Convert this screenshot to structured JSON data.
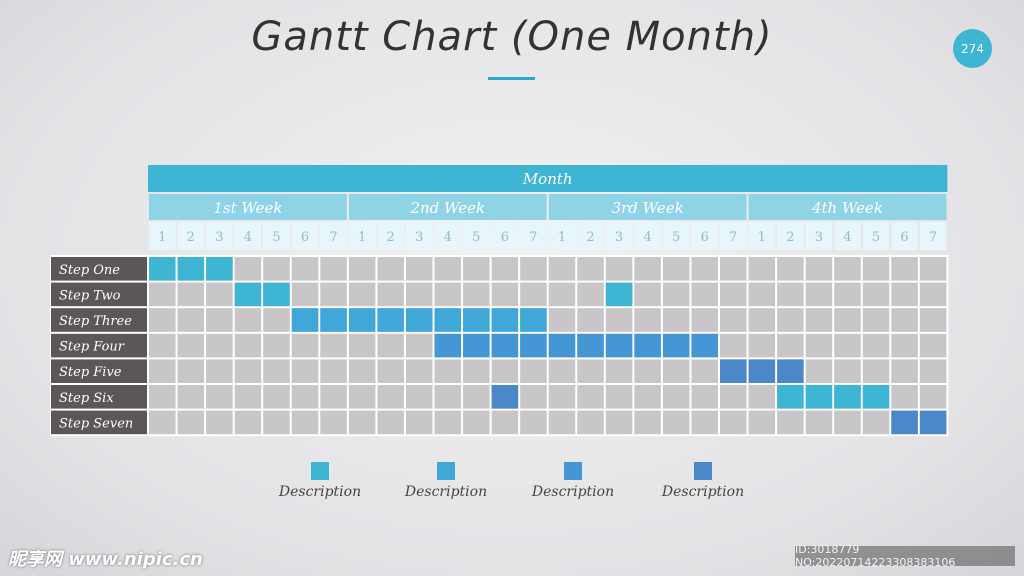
{
  "title": "Gantt Chart (One Month)",
  "page_number": "274",
  "colors": {
    "header_dark": "#3db5d3",
    "header_light": "#8fd3e6",
    "day_cell": "#e6f6fb",
    "grid_empty": "#c8c6c8",
    "step_label_bg": "#5b5757",
    "task_colors": [
      "#3db5d3",
      "#3fa8d8",
      "#4596d5",
      "#4a88c9"
    ]
  },
  "chart_data": {
    "type": "gantt",
    "header": "Month",
    "weeks": [
      "1st Week",
      "2nd Week",
      "3rd Week",
      "4th Week"
    ],
    "days_per_week": [
      "1",
      "2",
      "3",
      "4",
      "5",
      "6",
      "7"
    ],
    "tasks": [
      {
        "label": "Step One",
        "bars": [
          {
            "start": 1,
            "end": 3,
            "color": "#3db5d3"
          }
        ]
      },
      {
        "label": "Step Two",
        "bars": [
          {
            "start": 4,
            "end": 5,
            "color": "#3db5d3"
          },
          {
            "start": 17,
            "end": 17,
            "color": "#3db5d3"
          }
        ]
      },
      {
        "label": "Step Three",
        "bars": [
          {
            "start": 6,
            "end": 14,
            "color": "#3fa8d8"
          }
        ]
      },
      {
        "label": "Step Four",
        "bars": [
          {
            "start": 11,
            "end": 20,
            "color": "#4596d5"
          }
        ]
      },
      {
        "label": "Step Five",
        "bars": [
          {
            "start": 21,
            "end": 23,
            "color": "#4a88c9"
          }
        ]
      },
      {
        "label": "Step Six",
        "bars": [
          {
            "start": 13,
            "end": 13,
            "color": "#4a88c9"
          },
          {
            "start": 23,
            "end": 26,
            "color": "#3db5d3"
          }
        ]
      },
      {
        "label": "Step Seven",
        "bars": [
          {
            "start": 27,
            "end": 28,
            "color": "#4a88c9"
          }
        ]
      }
    ]
  },
  "legend": [
    {
      "label": "Description",
      "color": "#3db5d3"
    },
    {
      "label": "Description",
      "color": "#3fa8d8"
    },
    {
      "label": "Description",
      "color": "#4596d5"
    },
    {
      "label": "Description",
      "color": "#4a88c9"
    }
  ],
  "watermark": {
    "left": "昵享网 www.nipic.cn",
    "right": "ID:3018779 NO:20220714223308383106"
  }
}
